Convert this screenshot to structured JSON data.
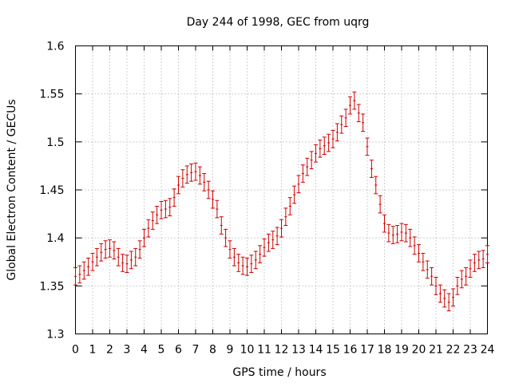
{
  "chart_data": {
    "type": "scatter",
    "title": "Day 244 of 1998, GEC from uqrg",
    "xlabel": "GPS time / hours",
    "ylabel": "Global Electron Content / GECUs",
    "xlim": [
      0,
      24
    ],
    "ylim": [
      1.3,
      1.6
    ],
    "xticks": [
      "0",
      "1",
      "2",
      "3",
      "4",
      "5",
      "6",
      "7",
      "8",
      "9",
      "10",
      "11",
      "12",
      "13",
      "14",
      "15",
      "16",
      "17",
      "18",
      "19",
      "20",
      "21",
      "22",
      "23",
      "24"
    ],
    "yticks": [
      "1.3",
      "1.35",
      "1.4",
      "1.45",
      "1.5",
      "1.55",
      "1.6"
    ],
    "grid": true,
    "color": "#cc0000",
    "error": 0.009,
    "series": [
      {
        "x": [
          0,
          0.25,
          0.5,
          0.75,
          1,
          1.25,
          1.5,
          1.75,
          2,
          2.25,
          2.5,
          2.75,
          3,
          3.25,
          3.5,
          3.75,
          4,
          4.25,
          4.5,
          4.75,
          5,
          5.25,
          5.5,
          5.75,
          6,
          6.25,
          6.5,
          6.75,
          7,
          7.25,
          7.5,
          7.75,
          8,
          8.25,
          8.5,
          8.75,
          9,
          9.25,
          9.5,
          9.75,
          10,
          10.25,
          10.5,
          10.75,
          11,
          11.25,
          11.5,
          11.75,
          12,
          12.25,
          12.5,
          12.75,
          13,
          13.25,
          13.5,
          13.75,
          14,
          14.25,
          14.5,
          14.75,
          15,
          15.25,
          15.5,
          15.75,
          16,
          16.25,
          16.5,
          16.75,
          17,
          17.25,
          17.5,
          17.75,
          18,
          18.25,
          18.5,
          18.75,
          19,
          19.25,
          19.5,
          19.75,
          20,
          20.25,
          20.5,
          20.75,
          21,
          21.25,
          21.5,
          21.75,
          22,
          22.25,
          22.5,
          22.75,
          23,
          23.25,
          23.5,
          23.75,
          24
        ],
        "y": [
          1.36,
          1.362,
          1.366,
          1.37,
          1.375,
          1.38,
          1.385,
          1.388,
          1.389,
          1.387,
          1.38,
          1.374,
          1.373,
          1.377,
          1.38,
          1.388,
          1.4,
          1.41,
          1.418,
          1.424,
          1.429,
          1.43,
          1.432,
          1.442,
          1.455,
          1.462,
          1.466,
          1.468,
          1.469,
          1.465,
          1.458,
          1.45,
          1.44,
          1.43,
          1.413,
          1.4,
          1.388,
          1.38,
          1.374,
          1.371,
          1.37,
          1.373,
          1.377,
          1.383,
          1.39,
          1.395,
          1.398,
          1.402,
          1.41,
          1.422,
          1.433,
          1.445,
          1.456,
          1.467,
          1.474,
          1.481,
          1.488,
          1.493,
          1.496,
          1.499,
          1.503,
          1.51,
          1.518,
          1.525,
          1.538,
          1.543,
          1.53,
          1.52,
          1.495,
          1.472,
          1.455,
          1.435,
          1.415,
          1.405,
          1.403,
          1.404,
          1.406,
          1.405,
          1.4,
          1.392,
          1.384,
          1.375,
          1.367,
          1.36,
          1.35,
          1.342,
          1.337,
          1.333,
          1.338,
          1.35,
          1.357,
          1.36,
          1.368,
          1.374,
          1.377,
          1.378,
          1.383
        ]
      }
    ]
  }
}
